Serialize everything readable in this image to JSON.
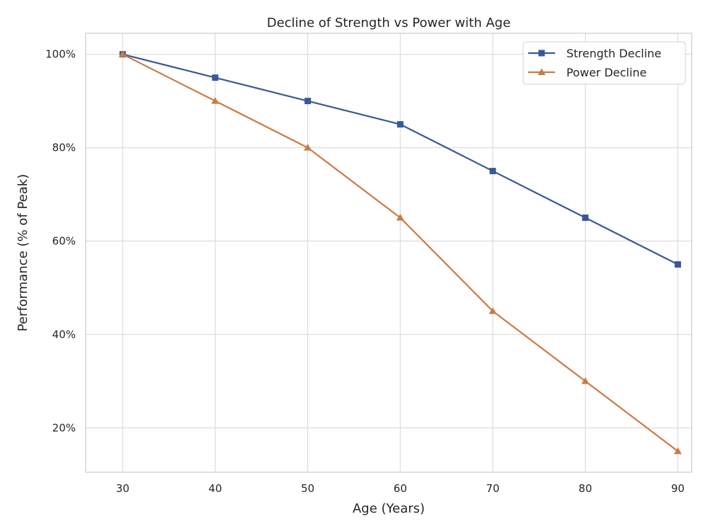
{
  "chart_data": {
    "type": "line",
    "title": "Decline of Strength vs Power with Age",
    "xlabel": "Age (Years)",
    "ylabel": "Performance (% of Peak)",
    "x": [
      30,
      40,
      50,
      60,
      70,
      80,
      90
    ],
    "xlim": [
      26,
      91.5
    ],
    "ylim": [
      10.5,
      104.5
    ],
    "xticks": [
      30,
      40,
      50,
      60,
      70,
      80,
      90
    ],
    "yticks": [
      20,
      40,
      60,
      80,
      100
    ],
    "ytick_labels": [
      "20%",
      "40%",
      "60%",
      "80%",
      "100%"
    ],
    "grid": true,
    "legend_position": "top-right",
    "series": [
      {
        "name": "Strength Decline",
        "values": [
          100,
          95,
          90,
          85,
          75,
          65,
          55
        ],
        "color": "#3a5894",
        "marker": "square"
      },
      {
        "name": "Power Decline",
        "values": [
          100,
          90,
          80,
          65,
          45,
          30,
          15
        ],
        "color": "#c97b45",
        "marker": "triangle"
      }
    ]
  }
}
